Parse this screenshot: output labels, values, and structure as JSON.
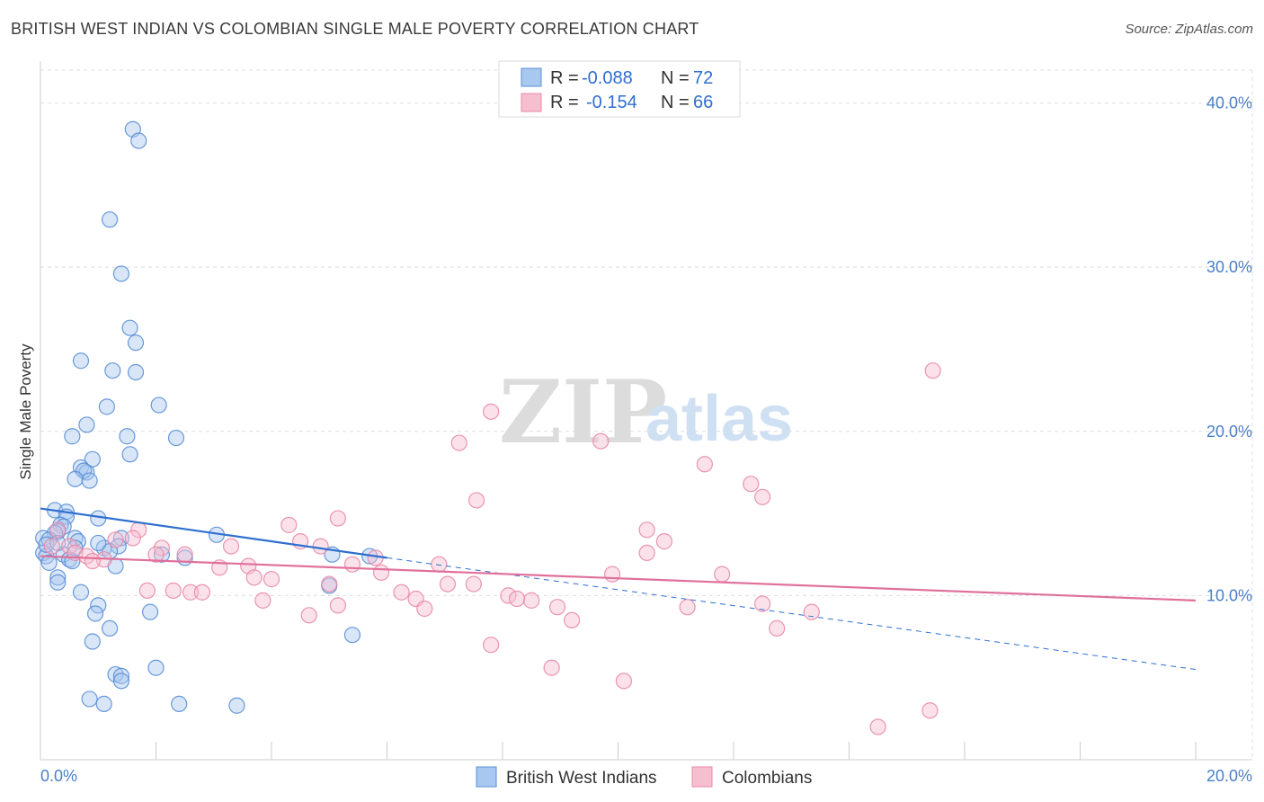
{
  "title": "BRITISH WEST INDIAN VS COLOMBIAN SINGLE MALE POVERTY CORRELATION CHART",
  "source": "Source: ZipAtlas.com",
  "watermark": {
    "zip": "ZIP",
    "atlas": "atlas"
  },
  "colors": {
    "blue_fill": "#a8c8f0",
    "blue_stroke": "#5a8fd6",
    "blue_line": "#2f6fd0",
    "pink_fill": "#f6bfd0",
    "pink_stroke": "#e88aa8",
    "pink_line": "#e0709a",
    "grid": "#dddddd",
    "axis_text": "#4a7fc8"
  },
  "chart_data": {
    "type": "scatter",
    "title": "BRITISH WEST INDIAN VS COLOMBIAN SINGLE MALE POVERTY CORRELATION CHART",
    "xlabel": "",
    "ylabel": "Single Male Poverty",
    "xlim": [
      0,
      20
    ],
    "ylim": [
      0,
      42
    ],
    "x_tick_labels": [
      "0.0%",
      "20.0%"
    ],
    "y_ticks": [
      10,
      20,
      30,
      40
    ],
    "y_tick_labels": [
      "10.0%",
      "20.0%",
      "30.0%",
      "40.0%"
    ],
    "legend_top": [
      {
        "r_label": "R = ",
        "r_value": "-0.088",
        "n_label": "N = ",
        "n_value": "72"
      },
      {
        "r_label": "R = ",
        "r_value": "-0.154",
        "n_label": "N = ",
        "n_value": "66"
      }
    ],
    "series": [
      {
        "name": "British West Indians",
        "color": "#a8c8f0",
        "trend": {
          "x0": 0,
          "y0": 15.3,
          "x1": 6,
          "y1": 12.3,
          "dash_x1": 20,
          "dash_y1": 5.5
        },
        "points": [
          [
            1.6,
            38.4
          ],
          [
            1.7,
            37.7
          ],
          [
            1.2,
            32.9
          ],
          [
            1.4,
            29.6
          ],
          [
            1.55,
            26.3
          ],
          [
            1.65,
            25.4
          ],
          [
            0.7,
            24.3
          ],
          [
            1.25,
            23.7
          ],
          [
            1.65,
            23.6
          ],
          [
            1.15,
            21.5
          ],
          [
            2.05,
            21.6
          ],
          [
            0.8,
            20.4
          ],
          [
            0.55,
            19.7
          ],
          [
            1.5,
            19.7
          ],
          [
            2.35,
            19.6
          ],
          [
            1.55,
            18.6
          ],
          [
            0.9,
            18.3
          ],
          [
            0.7,
            17.8
          ],
          [
            0.8,
            17.5
          ],
          [
            0.75,
            17.6
          ],
          [
            0.6,
            17.1
          ],
          [
            0.85,
            17.0
          ],
          [
            0.25,
            15.2
          ],
          [
            0.45,
            15.1
          ],
          [
            0.45,
            14.8
          ],
          [
            1.0,
            14.7
          ],
          [
            0.35,
            14.3
          ],
          [
            0.4,
            14.2
          ],
          [
            0.3,
            13.9
          ],
          [
            0.25,
            13.8
          ],
          [
            0.05,
            13.5
          ],
          [
            0.15,
            13.4
          ],
          [
            0.6,
            13.5
          ],
          [
            0.65,
            13.3
          ],
          [
            1.4,
            13.5
          ],
          [
            3.05,
            13.7
          ],
          [
            1.1,
            12.9
          ],
          [
            1.35,
            13.0
          ],
          [
            1.2,
            12.7
          ],
          [
            0.05,
            12.6
          ],
          [
            0.1,
            12.4
          ],
          [
            0.4,
            12.5
          ],
          [
            0.5,
            12.2
          ],
          [
            2.1,
            12.5
          ],
          [
            2.5,
            12.3
          ],
          [
            5.05,
            12.5
          ],
          [
            5.7,
            12.4
          ],
          [
            0.15,
            12.0
          ],
          [
            0.55,
            12.1
          ],
          [
            1.3,
            11.8
          ],
          [
            0.3,
            11.1
          ],
          [
            0.3,
            10.8
          ],
          [
            5.0,
            10.6
          ],
          [
            0.7,
            10.2
          ],
          [
            1.0,
            9.4
          ],
          [
            1.9,
            9.0
          ],
          [
            0.95,
            8.9
          ],
          [
            1.2,
            8.0
          ],
          [
            0.9,
            7.2
          ],
          [
            5.4,
            7.6
          ],
          [
            2.0,
            5.6
          ],
          [
            1.3,
            5.2
          ],
          [
            1.4,
            5.1
          ],
          [
            1.4,
            4.8
          ],
          [
            0.85,
            3.7
          ],
          [
            1.1,
            3.4
          ],
          [
            2.4,
            3.4
          ],
          [
            3.4,
            3.3
          ],
          [
            0.1,
            13.1
          ],
          [
            0.3,
            13.2
          ],
          [
            0.6,
            12.9
          ],
          [
            1.0,
            13.2
          ]
        ]
      },
      {
        "name": "Colombians",
        "color": "#f6bfd0",
        "trend": {
          "x0": 0,
          "y0": 12.4,
          "x1": 20,
          "y1": 9.7
        },
        "points": [
          [
            15.45,
            23.7
          ],
          [
            7.8,
            21.2
          ],
          [
            7.25,
            19.3
          ],
          [
            9.7,
            19.4
          ],
          [
            11.5,
            18.0
          ],
          [
            12.3,
            16.8
          ],
          [
            12.5,
            16.0
          ],
          [
            7.55,
            15.8
          ],
          [
            5.15,
            14.7
          ],
          [
            4.3,
            14.3
          ],
          [
            1.7,
            14.0
          ],
          [
            10.5,
            14.0
          ],
          [
            0.3,
            14.0
          ],
          [
            1.3,
            13.4
          ],
          [
            4.5,
            13.3
          ],
          [
            10.8,
            13.3
          ],
          [
            1.6,
            13.5
          ],
          [
            0.2,
            13.0
          ],
          [
            0.5,
            13.0
          ],
          [
            2.1,
            12.9
          ],
          [
            3.3,
            13.0
          ],
          [
            4.85,
            13.0
          ],
          [
            10.5,
            12.6
          ],
          [
            0.6,
            12.6
          ],
          [
            0.8,
            12.4
          ],
          [
            2.0,
            12.5
          ],
          [
            2.5,
            12.5
          ],
          [
            1.1,
            12.2
          ],
          [
            0.9,
            12.1
          ],
          [
            5.8,
            12.3
          ],
          [
            3.6,
            11.8
          ],
          [
            3.1,
            11.7
          ],
          [
            5.4,
            11.9
          ],
          [
            6.9,
            11.9
          ],
          [
            5.9,
            11.4
          ],
          [
            9.9,
            11.3
          ],
          [
            11.8,
            11.3
          ],
          [
            3.7,
            11.1
          ],
          [
            4.0,
            11.0
          ],
          [
            7.05,
            10.7
          ],
          [
            7.5,
            10.7
          ],
          [
            5.0,
            10.7
          ],
          [
            1.85,
            10.3
          ],
          [
            2.3,
            10.3
          ],
          [
            2.6,
            10.2
          ],
          [
            2.8,
            10.2
          ],
          [
            6.25,
            10.2
          ],
          [
            8.1,
            10.0
          ],
          [
            8.25,
            9.8
          ],
          [
            6.5,
            9.8
          ],
          [
            8.5,
            9.7
          ],
          [
            3.85,
            9.7
          ],
          [
            5.15,
            9.4
          ],
          [
            8.95,
            9.3
          ],
          [
            11.2,
            9.3
          ],
          [
            12.5,
            9.5
          ],
          [
            13.35,
            9.0
          ],
          [
            6.65,
            9.2
          ],
          [
            4.65,
            8.8
          ],
          [
            9.2,
            8.5
          ],
          [
            12.75,
            8.0
          ],
          [
            15.4,
            3.0
          ],
          [
            14.5,
            2.0
          ],
          [
            7.8,
            7.0
          ],
          [
            8.85,
            5.6
          ],
          [
            10.1,
            4.8
          ]
        ]
      }
    ],
    "legend_bottom": [
      "British West Indians",
      "Colombians"
    ]
  }
}
